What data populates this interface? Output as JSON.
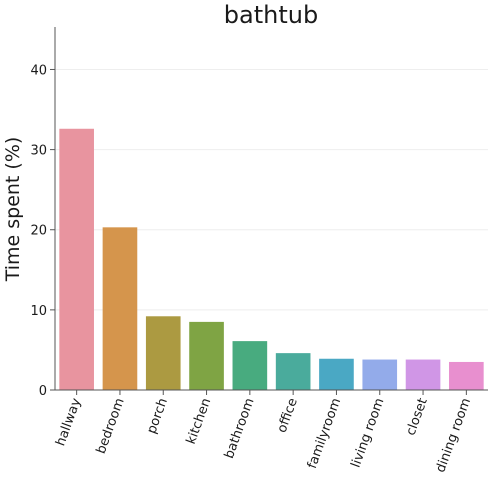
{
  "chart_data": {
    "type": "bar",
    "title": "bathtub",
    "xlabel": "",
    "ylabel": "Time spent (%)",
    "categories": [
      "hallway",
      "bedroom",
      "porch",
      "kitchen",
      "bathroom",
      "office",
      "familyroom",
      "living room",
      "closet",
      "dining room"
    ],
    "values": [
      32.6,
      20.3,
      9.2,
      8.5,
      6.1,
      4.6,
      3.9,
      3.8,
      3.8,
      3.5
    ],
    "colors": [
      "#e8949f",
      "#d5954c",
      "#ac9a41",
      "#7fa444",
      "#48ab7f",
      "#4aab9c",
      "#4aa8c4",
      "#93abea",
      "#d096e6",
      "#e88fcf"
    ],
    "ylim": [
      0,
      45.3
    ],
    "yticks": [
      0,
      10,
      20,
      30,
      40
    ],
    "grid": true
  }
}
